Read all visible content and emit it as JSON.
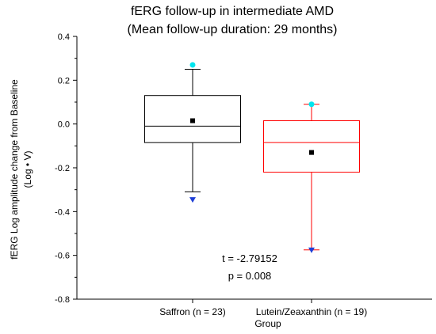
{
  "chart_data": {
    "type": "box",
    "title": "fERG follow-up in intermediate AMD",
    "subtitle": "(Mean follow-up duration: 29 months)",
    "xlabel": "Group",
    "ylabel": "fERG Log amplitude change from Baseline",
    "ylabel2": "(Log • V)",
    "ylim": [
      -0.8,
      0.4
    ],
    "yticks": [
      "0.4",
      "0.2",
      "0.0",
      "-0.2",
      "-0.4",
      "-0.6",
      "-0.8"
    ],
    "grid": false,
    "categories": [
      "Saffron (n = 23)",
      "Lutein/Zeaxanthin (n = 19)"
    ],
    "boxes": [
      {
        "category": "Saffron (n = 23)",
        "color": "#000000",
        "whisker_low": -0.31,
        "q1": -0.085,
        "median": -0.01,
        "q3": 0.13,
        "whisker_high": 0.25,
        "mean": 0.015,
        "max": 0.27,
        "min": -0.345
      },
      {
        "category": "Lutein/Zeaxanthin (n = 19)",
        "color": "#ff0000",
        "whisker_low": -0.575,
        "q1": -0.22,
        "median": -0.085,
        "q3": 0.015,
        "whisker_high": 0.09,
        "mean": -0.13,
        "max": 0.09,
        "min": -0.575
      }
    ],
    "marker_colors": {
      "max": "#00e5ee",
      "min": "#1f3fd6",
      "mean": "#000000"
    },
    "annotations": [
      "t = -2.79152",
      "p = 0.008"
    ]
  }
}
